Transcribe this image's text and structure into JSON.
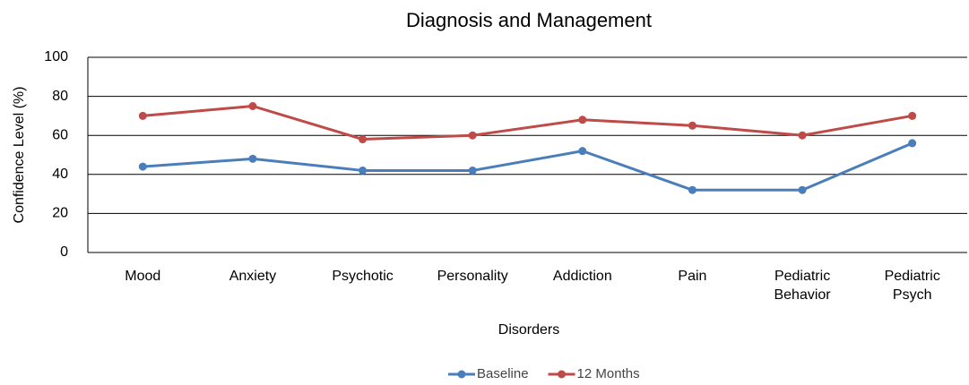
{
  "chart_data": {
    "type": "line",
    "title": "Diagnosis and Management",
    "x_label": "Disorders",
    "y_label": "Confidence Level (%)",
    "categories": [
      "Mood",
      "Anxiety",
      "Psychotic",
      "Personality",
      "Addiction",
      "Pain",
      "Pediatric Behavior",
      "Pediatric Psych"
    ],
    "series": [
      {
        "name": "Baseline",
        "color": "#4a7ebb",
        "values": [
          44,
          48,
          42,
          42,
          52,
          32,
          32,
          56
        ]
      },
      {
        "name": "12 Months",
        "color": "#be4b48",
        "values": [
          70,
          75,
          58,
          60,
          68,
          65,
          60,
          70
        ]
      }
    ],
    "ylim": [
      0,
      100
    ],
    "yticks": [
      0,
      20,
      40,
      60,
      80,
      100
    ],
    "grid": true,
    "legend": "bottom"
  }
}
